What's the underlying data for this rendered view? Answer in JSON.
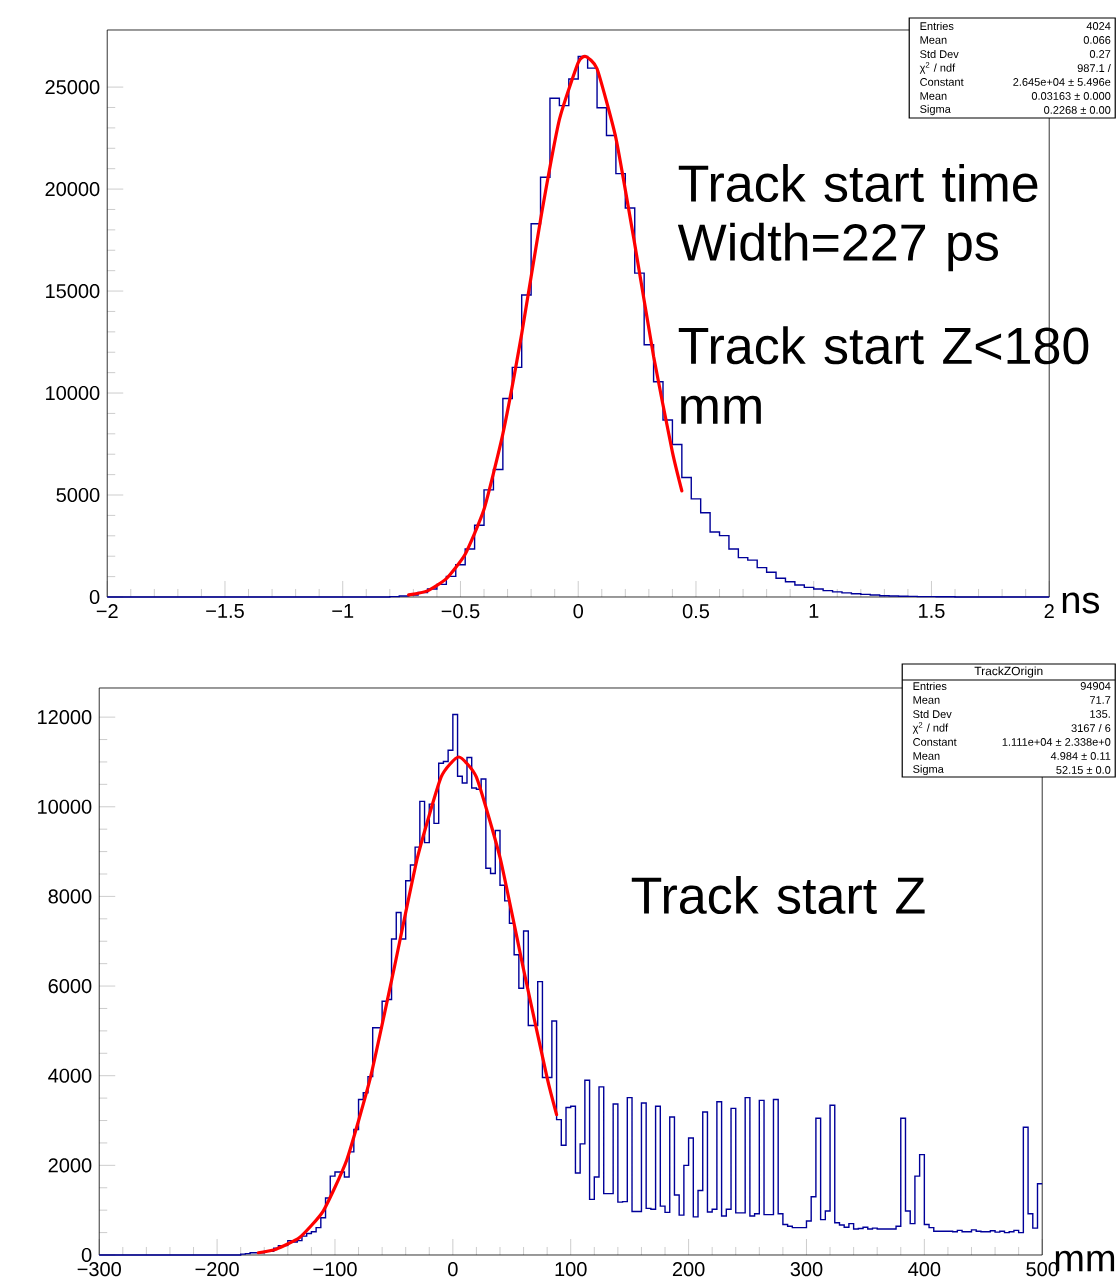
{
  "chart_data": [
    {
      "type": "histogram",
      "xlabel": "ns",
      "xlim": [
        -2,
        2
      ],
      "ylim": [
        0,
        27800
      ],
      "xticks": [
        {
          "value": -2,
          "label": "−2"
        },
        {
          "value": -1.5,
          "label": "−1.5"
        },
        {
          "value": -1,
          "label": "−1"
        },
        {
          "value": -0.5,
          "label": "−0.5"
        },
        0,
        0.5,
        1,
        1.5,
        2
      ],
      "yticks": [
        0,
        5000,
        10000,
        15000,
        20000,
        25000
      ],
      "series": [
        {
          "type": "histogram",
          "color": "#000099",
          "bins": [
            -2,
            -1.96,
            -1.92,
            -1.88,
            -1.84,
            -1.8,
            -1.76,
            -1.72,
            -1.68,
            -1.64,
            -1.6,
            -1.56,
            -1.52,
            -1.48,
            -1.44,
            -1.4,
            -1.36,
            -1.32,
            -1.28,
            -1.24,
            -1.2,
            -1.16,
            -1.12,
            -1.08,
            -1.04,
            -1,
            -0.96,
            -0.92,
            -0.88,
            -0.84,
            -0.8,
            -0.76,
            -0.72,
            -0.68,
            -0.64,
            -0.6,
            -0.56,
            -0.52,
            -0.48,
            -0.44,
            -0.4,
            -0.36,
            -0.32,
            -0.28,
            -0.24,
            -0.2,
            -0.16,
            -0.12,
            -0.08,
            -0.04,
            0,
            0.04,
            0.08,
            0.12,
            0.16,
            0.2,
            0.24,
            0.28,
            0.32,
            0.36,
            0.4,
            0.44,
            0.48,
            0.52,
            0.56,
            0.6,
            0.64,
            0.68,
            0.72,
            0.76,
            0.8,
            0.84,
            0.88,
            0.92,
            0.96,
            1,
            1.04,
            1.08,
            1.12,
            1.16,
            1.2,
            1.24,
            1.28,
            1.32,
            1.36,
            1.4,
            1.44,
            1.48,
            1.52,
            1.56,
            1.6,
            1.64,
            1.68,
            1.72,
            1.76,
            1.8,
            1.84,
            1.88,
            1.92,
            1.96,
            2
          ],
          "values": [
            0,
            0,
            0,
            0,
            0,
            0,
            0,
            0,
            0,
            0,
            0,
            0,
            0,
            0,
            0,
            0,
            0,
            0,
            0,
            0,
            0,
            0,
            0,
            0,
            0,
            0,
            0,
            0,
            0,
            0,
            20,
            50,
            90,
            220,
            390,
            620,
            1010,
            1580,
            2350,
            3520,
            5250,
            6250,
            9730,
            11260,
            14810,
            18300,
            20580,
            24450,
            24090,
            25400,
            26500,
            25930,
            23990,
            22630,
            20760,
            19070,
            15880,
            12370,
            10550,
            8680,
            7480,
            5860,
            4810,
            4130,
            3190,
            3010,
            2350,
            1930,
            1810,
            1440,
            1210,
            920,
            750,
            590,
            470,
            390,
            310,
            250,
            200,
            160,
            130,
            100,
            60,
            50,
            40,
            30,
            20,
            20,
            10,
            10,
            0,
            0,
            0,
            0,
            0,
            0,
            0,
            0,
            0,
            0
          ]
        },
        {
          "type": "line",
          "color": "#ff0000",
          "x": [
            -0.72,
            -0.64,
            -0.56,
            -0.48,
            -0.4,
            -0.32,
            -0.24,
            -0.16,
            -0.08,
            0,
            0.0316,
            0.08,
            0.16,
            0.24,
            0.32,
            0.4,
            0.44
          ],
          "values": [
            100,
            300,
            900,
            2100,
            4300,
            8000,
            12900,
            18500,
            23400,
            26200,
            26500,
            25900,
            22500,
            17300,
            11800,
            7100,
            5200
          ]
        }
      ],
      "annotations": [
        "Track start time",
        "Width=227 ps",
        "Track start Z<180 mm",
        "Entries",
        "4024",
        "Mean",
        "0.066",
        "Std Dev",
        "0.27",
        "χ$^{2}$ / ndf",
        "987.1 /",
        "Constant",
        "2.645e+04 ± 5.496e",
        "Mean",
        "0.03163 ± 0.000",
        "Sigma",
        "0.2268 ± 0.00"
      ]
    },
    {
      "type": "histogram",
      "xlabel": "mm",
      "xlim": [
        -300,
        500
      ],
      "ylim": [
        0,
        12650
      ],
      "xticks": [
        {
          "value": -300,
          "label": "−300"
        },
        {
          "value": -200,
          "label": "−200"
        },
        {
          "value": -100,
          "label": "−100"
        },
        0,
        100,
        200,
        300,
        400,
        500
      ],
      "yticks": [
        0,
        2000,
        4000,
        6000,
        8000,
        10000,
        12000
      ],
      "series": [
        {
          "type": "histogram",
          "color": "#000099",
          "bins": [
            -300,
            -296,
            -292,
            -288,
            -284,
            -280,
            -276,
            -272,
            -268,
            -264,
            -260,
            -256,
            -252,
            -248,
            -244,
            -240,
            -236,
            -232,
            -228,
            -224,
            -220,
            -216,
            -212,
            -208,
            -204,
            -200,
            -196,
            -192,
            -188,
            -184,
            -180,
            -176,
            -172,
            -168,
            -164,
            -160,
            -156,
            -152,
            -148,
            -144,
            -140,
            -136,
            -132,
            -128,
            -124,
            -120,
            -116,
            -112,
            -108,
            -104,
            -100,
            -96,
            -92,
            -88,
            -84,
            -80,
            -76,
            -72,
            -68,
            -64,
            -60,
            -56,
            -52,
            -48,
            -44,
            -40,
            -36,
            -32,
            -28,
            -24,
            -20,
            -16,
            -12,
            -8,
            -4,
            0,
            4,
            8,
            12,
            16,
            20,
            24,
            28,
            32,
            36,
            40,
            44,
            48,
            52,
            56,
            60,
            64,
            68,
            72,
            76,
            80,
            84,
            88,
            92,
            96,
            100,
            104,
            108,
            112,
            116,
            120,
            124,
            128,
            132,
            136,
            140,
            144,
            148,
            152,
            156,
            160,
            164,
            168,
            172,
            176,
            180,
            184,
            188,
            192,
            196,
            200,
            204,
            208,
            212,
            216,
            220,
            224,
            228,
            232,
            236,
            240,
            244,
            248,
            252,
            256,
            260,
            264,
            268,
            272,
            276,
            280,
            284,
            288,
            292,
            296,
            300,
            304,
            308,
            312,
            316,
            320,
            324,
            328,
            332,
            336,
            340,
            344,
            348,
            352,
            356,
            360,
            364,
            368,
            372,
            376,
            380,
            384,
            388,
            392,
            396,
            400,
            404,
            408,
            412,
            416,
            420,
            424,
            428,
            432,
            436,
            440,
            444,
            448,
            452,
            456,
            460,
            464,
            468,
            472,
            476,
            480,
            484,
            488,
            492,
            496,
            500
          ],
          "values": [
            0,
            0,
            0,
            0,
            0,
            0,
            0,
            0,
            0,
            0,
            0,
            0,
            0,
            0,
            0,
            0,
            0,
            0,
            0,
            0,
            0,
            0,
            0,
            0,
            0,
            0,
            0,
            0,
            0,
            0,
            20,
            30,
            50,
            50,
            50,
            80,
            80,
            150,
            210,
            210,
            320,
            290,
            320,
            420,
            480,
            520,
            610,
            830,
            1270,
            1760,
            1850,
            1850,
            1740,
            2300,
            2800,
            3470,
            3620,
            3980,
            5070,
            5070,
            5660,
            5700,
            7050,
            7640,
            7050,
            8350,
            8700,
            9100,
            10120,
            9200,
            10060,
            9630,
            10970,
            11010,
            11260,
            12060,
            10680,
            10530,
            11100,
            10420,
            10390,
            10620,
            8630,
            8510,
            9470,
            8250,
            7900,
            7400,
            6700,
            5950,
            7230,
            5120,
            5120,
            6100,
            3960,
            3960,
            5220,
            3020,
            2450,
            3290,
            3320,
            1830,
            2480,
            3900,
            1240,
            1740,
            3750,
            1370,
            1370,
            3370,
            1180,
            1190,
            3510,
            970,
            970,
            3390,
            1040,
            1020,
            3320,
            1090,
            950,
            3080,
            1340,
            890,
            2000,
            2610,
            850,
            1440,
            3190,
            960,
            1020,
            3420,
            870,
            1020,
            3270,
            940,
            940,
            3510,
            870,
            920,
            3450,
            900,
            900,
            3470,
            920,
            680,
            640,
            610,
            610,
            610,
            760,
            1300,
            3050,
            790,
            980,
            3340,
            720,
            670,
            620,
            700,
            580,
            590,
            620,
            580,
            600,
            580,
            580,
            580,
            580,
            640,
            3050,
            980,
            700,
            1760,
            2240,
            680,
            610,
            530,
            530,
            530,
            530,
            520,
            550,
            520,
            520,
            560,
            530,
            520,
            520,
            540,
            510,
            530,
            500,
            520,
            550,
            500,
            2850,
            920,
            600,
            1590
          ]
        },
        {
          "type": "line",
          "color": "#ff0000",
          "x": [
            -165,
            -150,
            -130,
            -110,
            -90,
            -70,
            -50,
            -30,
            -10,
            5,
            20,
            40,
            60,
            80,
            88
          ],
          "values": [
            50,
            130,
            390,
            980,
            2120,
            3950,
            6370,
            8870,
            10660,
            11110,
            10660,
            8870,
            6370,
            3950,
            3130
          ]
        }
      ],
      "annotations": [
        "Track start Z",
        "TrackZOrigin",
        "Entries",
        "94904",
        "Mean",
        "71.7",
        "Std Dev",
        "135.",
        "χ$^{2}$ / ndf",
        "3167 / 6",
        "Constant",
        "1.111e+04 ± 2.338e+0",
        "Mean",
        "4.984 ± 0.11",
        "Sigma",
        "52.15 ± 0.0"
      ]
    }
  ]
}
